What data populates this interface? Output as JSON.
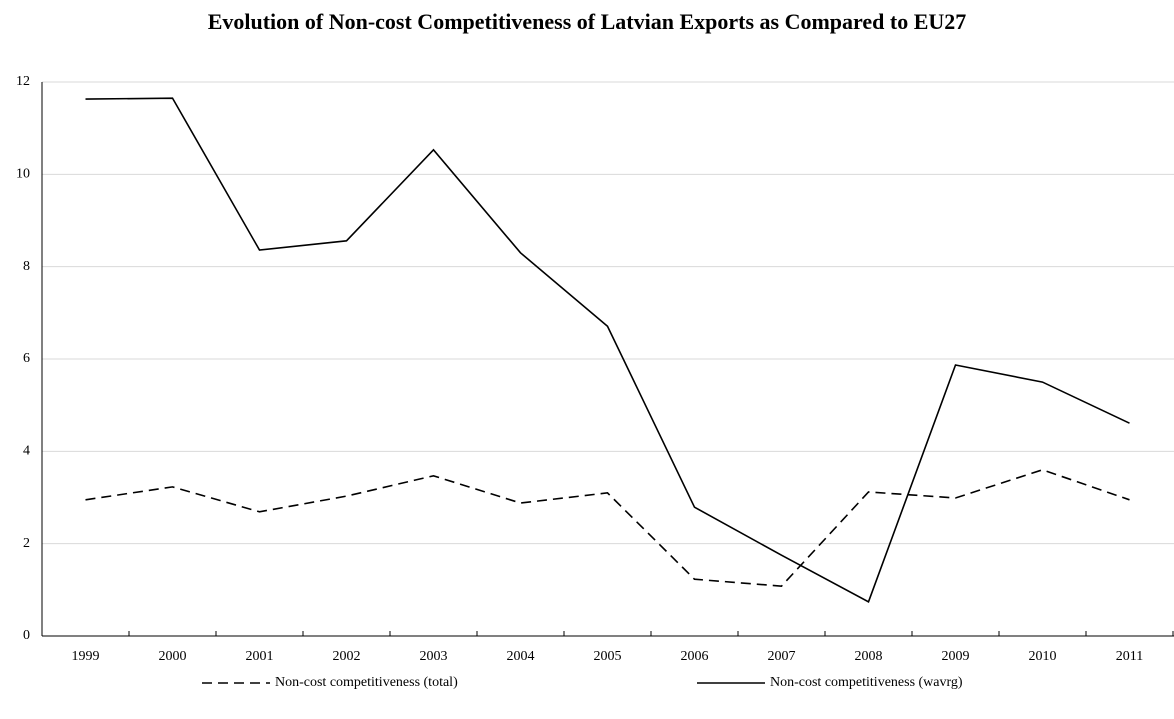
{
  "chart_data": {
    "type": "line",
    "title": "Evolution of Non-cost Competitiveness of Latvian Exports as Compared to EU27",
    "categories": [
      "1999",
      "2000",
      "2001",
      "2002",
      "2003",
      "2004",
      "2005",
      "2006",
      "2007",
      "2008",
      "2009",
      "2010",
      "2011"
    ],
    "series": [
      {
        "name": "Non-cost competitiveness (total)",
        "color": "#000000",
        "line_style": "dashed",
        "values": [
          2.95,
          3.23,
          2.69,
          3.03,
          3.47,
          2.88,
          3.1,
          1.23,
          1.08,
          3.12,
          2.99,
          3.6,
          2.95
        ]
      },
      {
        "name": "Non-cost competitiveness (wavrg)",
        "color": "#000000",
        "line_style": "solid",
        "values": [
          11.63,
          11.65,
          8.36,
          8.56,
          10.53,
          8.3,
          6.71,
          2.79,
          1.75,
          0.74,
          5.87,
          5.5,
          4.61
        ]
      }
    ],
    "ylim": [
      0,
      12
    ],
    "yticks": [
      0,
      2,
      4,
      6,
      8,
      10,
      12
    ],
    "grid": true,
    "legend": "bottom"
  }
}
